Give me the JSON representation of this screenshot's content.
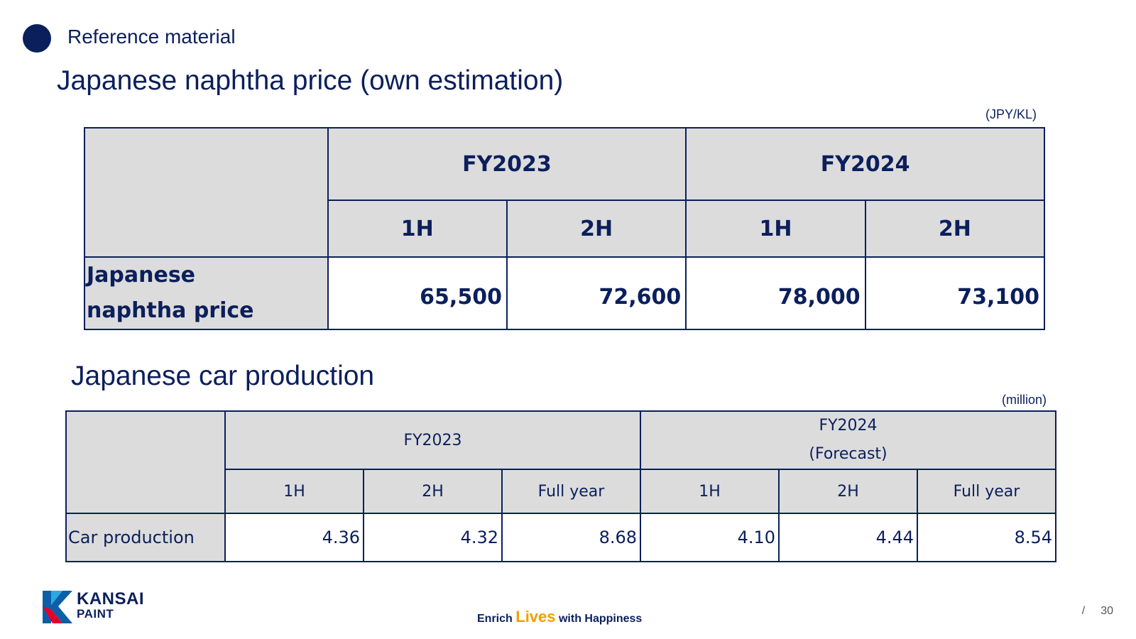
{
  "header": {
    "section_label": "Reference material"
  },
  "naphtha": {
    "title": "Japanese naphtha price (own estimation)",
    "unit": "(JPY/KL)",
    "years": [
      "FY2023",
      "FY2024"
    ],
    "halves": [
      "1H",
      "2H",
      "1H",
      "2H"
    ],
    "row_label_line1": "Japanese",
    "row_label_line2": "naphtha price",
    "values": [
      "65,500",
      "72,600",
      "78,000",
      "73,100"
    ]
  },
  "car": {
    "title": "Japanese car production",
    "unit": "(million)",
    "year1": "FY2023",
    "year2_line1": "FY2024",
    "year2_line2": "(Forecast)",
    "periods": [
      "1H",
      "2H",
      "Full year",
      "1H",
      "2H",
      "Full year"
    ],
    "row_label": "Car production",
    "values": [
      "4.36",
      "4.32",
      "8.68",
      "4.10",
      "4.44",
      "8.54"
    ]
  },
  "footer": {
    "logo_line1": "KANSAI",
    "logo_line2": "PAINT",
    "tagline_pre": "Enrich",
    "tagline_mid": "Lives",
    "tagline_post": "with Happiness",
    "page_slash": "/",
    "page_number": "30"
  },
  "colors": {
    "navy": "#0b1f5c",
    "header_gray": "#dcdcdc",
    "logo_red": "#e4002b",
    "logo_blue": "#0b5fa8",
    "lives_orange": "#f0a000"
  }
}
